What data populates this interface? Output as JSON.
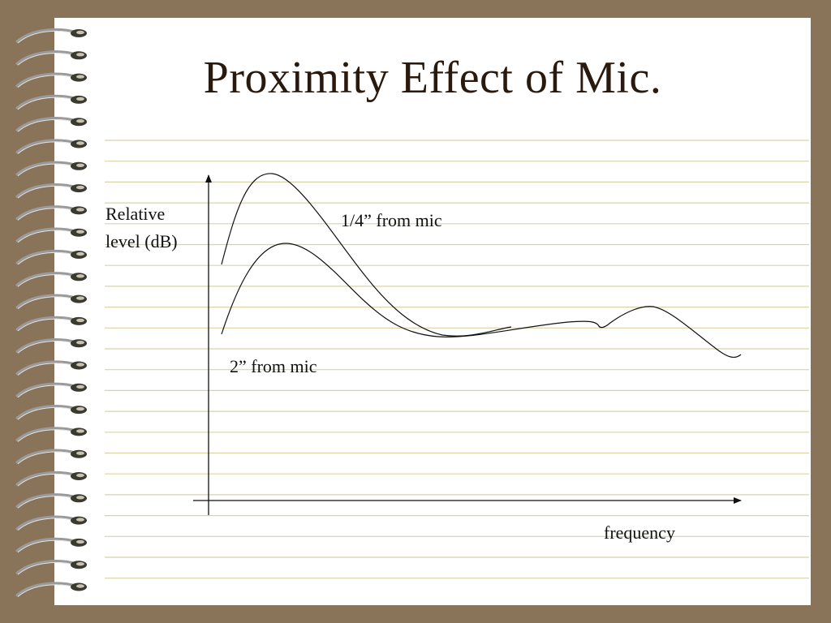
{
  "slide": {
    "title": "Proximity Effect of Mic."
  },
  "diagram": {
    "y_axis_label": [
      "Relative",
      "level (dB)"
    ],
    "x_axis_label": "frequency",
    "curves": [
      {
        "label": "1/4” from mic"
      },
      {
        "label": "2” from mic"
      }
    ]
  },
  "colors": {
    "background": "#8a7459",
    "paper": "#ffffff",
    "rule_lines": "#d8d3a8",
    "title": "#2a1a0e",
    "curves": "#111111"
  },
  "icons": {
    "binding": "spiral-binding-icon"
  }
}
